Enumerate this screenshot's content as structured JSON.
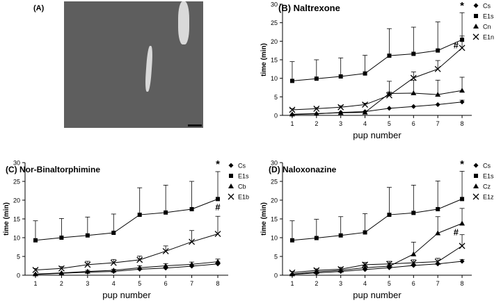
{
  "panel_a": {
    "label": "(A)"
  },
  "chart_data": [
    {
      "type": "line",
      "title": "(B) Naltrexone",
      "xlabel": "pup number",
      "ylabel": "time (min)",
      "x": [
        1,
        2,
        3,
        4,
        5,
        6,
        7,
        8
      ],
      "xlim": [
        0.6,
        8.4
      ],
      "ylim": [
        0,
        30
      ],
      "yticks": [
        0,
        5,
        10,
        15,
        20,
        25,
        30
      ],
      "legend_position": "top-right",
      "series": [
        {
          "name": "Cs",
          "marker": "diamond",
          "values": [
            0.2,
            0.4,
            0.8,
            1.0,
            1.9,
            2.4,
            2.9,
            3.6
          ],
          "errors": [
            0,
            0,
            0,
            0,
            0,
            0,
            0,
            0.5
          ]
        },
        {
          "name": "E1s",
          "marker": "square",
          "values": [
            9.3,
            9.9,
            10.5,
            11.3,
            16.1,
            16.6,
            17.5,
            20.4
          ],
          "errors": [
            5.2,
            5.1,
            5.0,
            4.9,
            7.3,
            7.2,
            7.7,
            7.3
          ]
        },
        {
          "name": "Cn",
          "marker": "triangle",
          "values": [
            0.3,
            0.5,
            0.7,
            0.8,
            5.9,
            6.0,
            5.6,
            6.7
          ],
          "errors": [
            0,
            0,
            0,
            0,
            3.3,
            3.5,
            3.9,
            3.6
          ]
        },
        {
          "name": "E1n",
          "marker": "x",
          "values": [
            1.5,
            1.8,
            2.2,
            2.9,
            5.4,
            10.1,
            12.5,
            18.2
          ],
          "errors": [
            0.3,
            0.3,
            0.4,
            0.4,
            0.9,
            1.6,
            2.3,
            3.2
          ]
        }
      ],
      "annotations": [
        {
          "text": "*",
          "x": 8,
          "y": 29.8
        },
        {
          "text": "#",
          "x": 7.75,
          "y": 19.2
        }
      ]
    },
    {
      "type": "line",
      "title": "(C) Nor-Binaltorphimine",
      "xlabel": "pup number",
      "ylabel": "time (min)",
      "x": [
        1,
        2,
        3,
        4,
        5,
        6,
        7,
        8
      ],
      "xlim": [
        0.6,
        8.4
      ],
      "ylim": [
        0,
        30
      ],
      "yticks": [
        0,
        5,
        10,
        15,
        20,
        25,
        30
      ],
      "legend_position": "top-right",
      "series": [
        {
          "name": "Cs",
          "marker": "diamond",
          "values": [
            0.2,
            0.5,
            0.8,
            1.0,
            1.6,
            1.9,
            2.4,
            3.0
          ],
          "errors": [
            0,
            0,
            0,
            0,
            0,
            0,
            0,
            0.5
          ]
        },
        {
          "name": "E1s",
          "marker": "square",
          "values": [
            9.3,
            10.0,
            10.6,
            11.3,
            16.1,
            16.7,
            17.6,
            20.3
          ],
          "errors": [
            5.2,
            5.1,
            4.9,
            5.0,
            7.2,
            7.3,
            7.4,
            7.3
          ]
        },
        {
          "name": "Cb",
          "marker": "triangle",
          "values": [
            0.3,
            0.6,
            1.0,
            1.3,
            2.0,
            2.5,
            2.9,
            3.6
          ],
          "errors": [
            0,
            0,
            0.3,
            0.3,
            0.5,
            0.6,
            0.6,
            0.7
          ]
        },
        {
          "name": "E1b",
          "marker": "x",
          "values": [
            1.4,
            1.8,
            2.8,
            3.3,
            4.1,
            6.4,
            8.9,
            11.0
          ],
          "errors": [
            0.4,
            0.5,
            0.9,
            0.9,
            1.0,
            1.4,
            3.0,
            4.7
          ]
        }
      ],
      "annotations": [
        {
          "text": "*",
          "x": 8,
          "y": 29.8
        },
        {
          "text": "#",
          "x": 8,
          "y": 18.4
        }
      ]
    },
    {
      "type": "line",
      "title": "(D) Naloxonazine",
      "xlabel": "pup number",
      "ylabel": "time (min)",
      "x": [
        1,
        2,
        3,
        4,
        5,
        6,
        7,
        8
      ],
      "xlim": [
        0.6,
        8.4
      ],
      "ylim": [
        0,
        30
      ],
      "yticks": [
        0,
        5,
        10,
        15,
        20,
        25,
        30
      ],
      "legend_position": "top-right",
      "series": [
        {
          "name": "Cs",
          "marker": "diamond",
          "values": [
            0.2,
            0.6,
            1.0,
            1.5,
            2.0,
            2.6,
            3.0,
            3.7
          ],
          "errors": [
            0,
            0,
            0,
            0,
            0,
            0,
            0,
            0.5
          ]
        },
        {
          "name": "E1s",
          "marker": "square",
          "values": [
            9.3,
            9.9,
            10.6,
            11.4,
            16.1,
            16.6,
            17.6,
            20.3
          ],
          "errors": [
            5.2,
            5.0,
            5.0,
            5.0,
            7.3,
            7.4,
            7.5,
            7.4
          ]
        },
        {
          "name": "Cz",
          "marker": "triangle",
          "values": [
            0.3,
            0.9,
            1.3,
            2.0,
            2.4,
            5.6,
            11.2,
            13.8
          ],
          "errors": [
            0,
            0.3,
            0.3,
            0.5,
            0.6,
            3.2,
            4.4,
            4.0
          ]
        },
        {
          "name": "E1z",
          "marker": "x",
          "values": [
            0.7,
            1.3,
            1.6,
            2.8,
            3.0,
            3.3,
            3.6,
            7.8
          ],
          "errors": [
            0.3,
            0.4,
            0.5,
            0.6,
            0.7,
            0.8,
            0.9,
            3.0
          ]
        }
      ],
      "annotations": [
        {
          "text": "*",
          "x": 8,
          "y": 29.8
        },
        {
          "text": "#",
          "x": 7.75,
          "y": 11.8
        }
      ]
    }
  ]
}
